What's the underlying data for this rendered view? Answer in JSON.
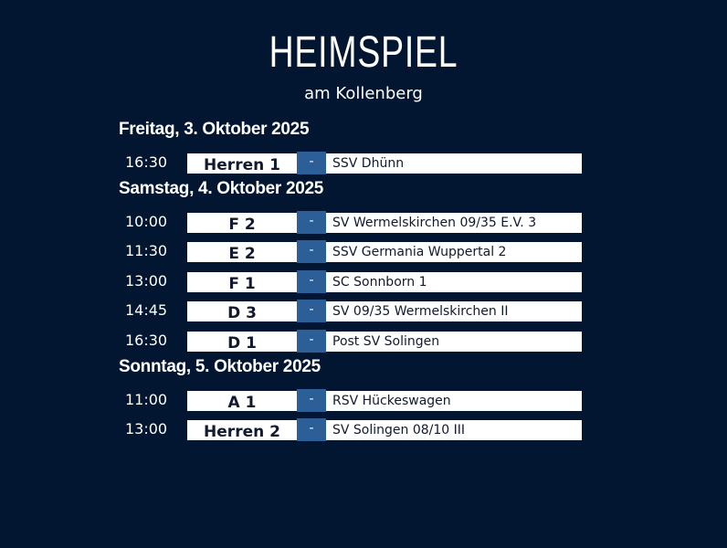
{
  "header": {
    "title": "HEIMSPIEL",
    "subtitle": "am Kollenberg"
  },
  "days": [
    {
      "label": "Freitag, 3. Oktober 2025",
      "games": [
        {
          "time": "16:30",
          "team": "Herren 1",
          "sep": "-",
          "opponent": "SSV Dhünn"
        }
      ]
    },
    {
      "label": "Samstag, 4. Oktober 2025",
      "games": [
        {
          "time": "10:00",
          "team": "F 2",
          "sep": "-",
          "opponent": "SV Wermelskirchen 09/35 E.V. 3"
        },
        {
          "time": "11:30",
          "team": "E 2",
          "sep": "-",
          "opponent": "SSV Germania Wuppertal 2"
        },
        {
          "time": "13:00",
          "team": "F 1",
          "sep": "-",
          "opponent": "SC Sonnborn 1"
        },
        {
          "time": "14:45",
          "team": "D 3",
          "sep": "-",
          "opponent": "SV 09/35 Wermelskirchen II"
        },
        {
          "time": "16:30",
          "team": "D 1",
          "sep": "-",
          "opponent": "Post SV Solingen"
        }
      ]
    },
    {
      "label": "Sonntag, 5. Oktober 2025",
      "games": [
        {
          "time": "11:00",
          "team": "A 1",
          "sep": "-",
          "opponent": "RSV Hückeswagen"
        },
        {
          "time": "13:00",
          "team": "Herren 2",
          "sep": "-",
          "opponent": "SV Solingen 08/10 III"
        }
      ]
    }
  ],
  "colors": {
    "background": "#021631",
    "accent": "#2c5e98",
    "row": "#ffffff"
  }
}
